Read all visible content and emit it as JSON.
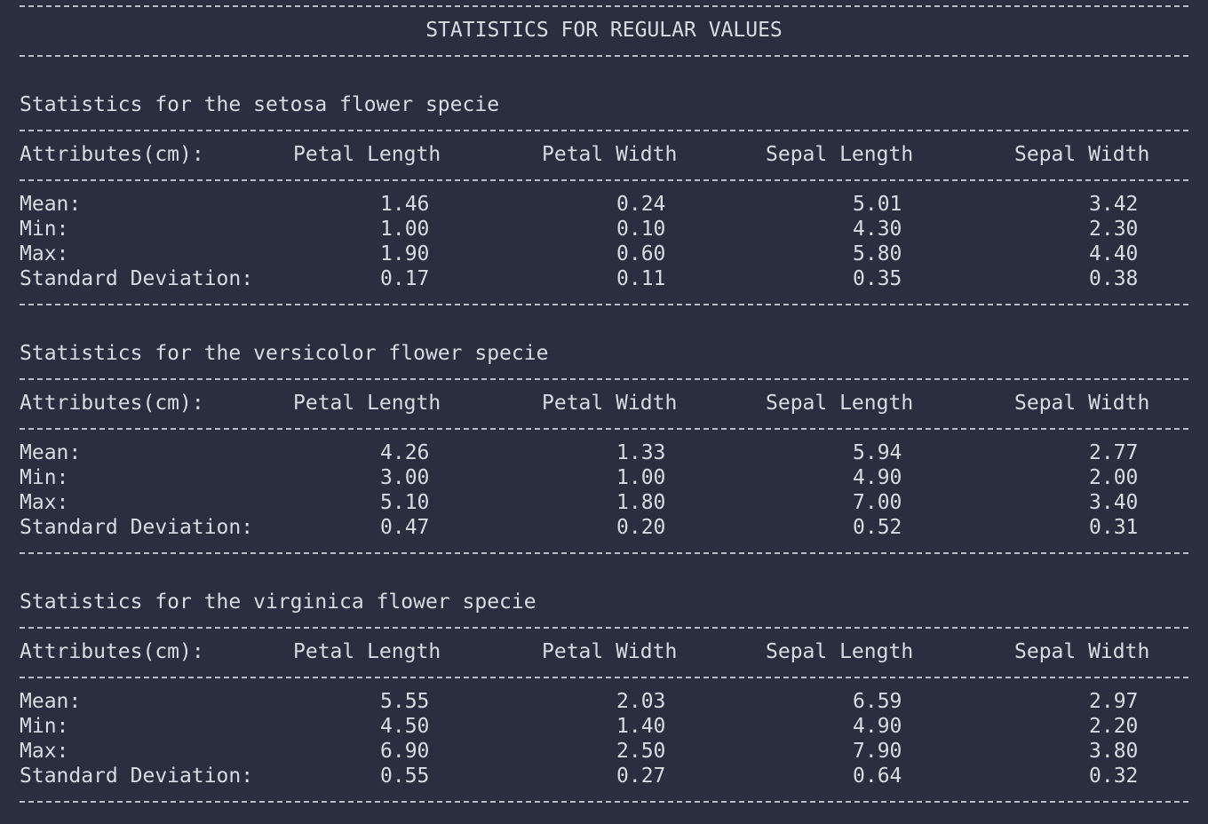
{
  "banner": {
    "title": "STATISTICS FOR REGULAR VALUES"
  },
  "header_label": "Attributes(cm):",
  "columns": [
    "Petal Length",
    "Petal Width",
    "Sepal Length",
    "Sepal Width"
  ],
  "row_labels": [
    "Mean:",
    "Min:",
    "Max:",
    "Standard Deviation:"
  ],
  "sections": [
    {
      "title": "Statistics for the setosa flower specie",
      "rows": [
        [
          "1.46",
          "0.24",
          "5.01",
          "3.42"
        ],
        [
          "1.00",
          "0.10",
          "4.30",
          "2.30"
        ],
        [
          "1.90",
          "0.60",
          "5.80",
          "4.40"
        ],
        [
          "0.17",
          "0.11",
          "0.35",
          "0.38"
        ]
      ]
    },
    {
      "title": "Statistics for the versicolor flower specie",
      "rows": [
        [
          "4.26",
          "1.33",
          "5.94",
          "2.77"
        ],
        [
          "3.00",
          "1.00",
          "4.90",
          "2.00"
        ],
        [
          "5.10",
          "1.80",
          "7.00",
          "3.40"
        ],
        [
          "0.47",
          "0.20",
          "0.52",
          "0.31"
        ]
      ]
    },
    {
      "title": "Statistics for the virginica flower specie",
      "rows": [
        [
          "5.55",
          "2.03",
          "6.59",
          "2.97"
        ],
        [
          "4.50",
          "1.40",
          "4.90",
          "2.20"
        ],
        [
          "6.90",
          "2.50",
          "7.90",
          "3.80"
        ],
        [
          "0.55",
          "0.27",
          "0.64",
          "0.32"
        ]
      ]
    }
  ]
}
